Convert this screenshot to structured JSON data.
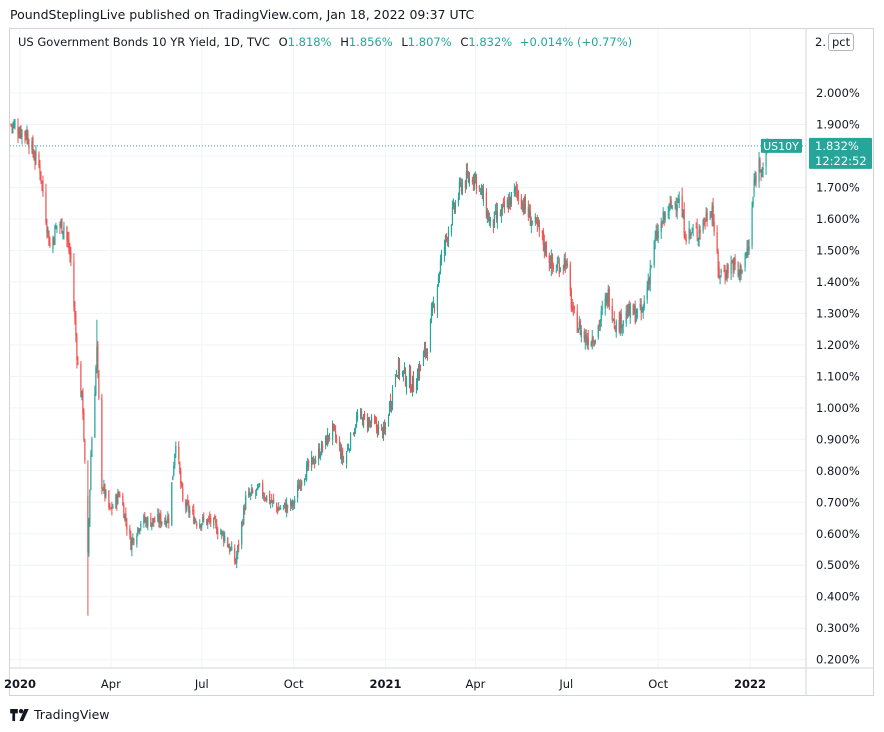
{
  "header": {
    "published": "PoundStерlingLive published on TradingView.com, Jan 18, 2022 09:37 UTC"
  },
  "legend": {
    "title": "US Government Bonds 10 YR Yield, 1D, TVC",
    "open_label": "O",
    "open": "1.818%",
    "high_label": "H",
    "high": "1.856%",
    "low_label": "L",
    "low": "1.807%",
    "close_label": "C",
    "close": "1.832%",
    "change": "+0.014% (+0.77%)"
  },
  "scale": {
    "partial_label": "2.",
    "unit_button": "pct"
  },
  "price_tag": {
    "symbol": "US10Y",
    "price": "1.832%",
    "countdown": "12:22:52"
  },
  "footer": {
    "brand": "TradingView"
  },
  "colors": {
    "up": "#26a69a",
    "down": "#ef5350",
    "tag": "#26a69a",
    "grid": "#f0f3fa"
  },
  "chart_data": {
    "type": "candlestick",
    "title": "US Government Bonds 10 YR Yield, 1D, TVC",
    "y_unit": "%",
    "ylim": [
      0.18,
      2.2
    ],
    "y_ticks": [
      "2.000%",
      "1.900%",
      "1.800%",
      "1.700%",
      "1.600%",
      "1.500%",
      "1.400%",
      "1.300%",
      "1.200%",
      "1.100%",
      "1.000%",
      "0.900%",
      "0.800%",
      "0.700%",
      "0.600%",
      "0.500%",
      "0.400%",
      "0.300%",
      "0.200%"
    ],
    "y_tick_values": [
      2.0,
      1.9,
      1.8,
      1.7,
      1.6,
      1.5,
      1.4,
      1.3,
      1.2,
      1.1,
      1.0,
      0.9,
      0.8,
      0.7,
      0.6,
      0.5,
      0.4,
      0.3,
      0.2
    ],
    "x_ticks": [
      {
        "label": "2020",
        "date": "2020-01-01",
        "bold": true
      },
      {
        "label": "Apr",
        "date": "2020-04-01",
        "bold": false
      },
      {
        "label": "Jul",
        "date": "2020-07-01",
        "bold": false
      },
      {
        "label": "Oct",
        "date": "2020-10-01",
        "bold": false
      },
      {
        "label": "2021",
        "date": "2021-01-01",
        "bold": true
      },
      {
        "label": "Apr",
        "date": "2021-04-01",
        "bold": false
      },
      {
        "label": "Jul",
        "date": "2021-07-01",
        "bold": false
      },
      {
        "label": "Oct",
        "date": "2021-10-01",
        "bold": false
      },
      {
        "label": "2022",
        "date": "2022-01-01",
        "bold": true
      }
    ],
    "x_range": [
      "2019-12-22",
      "2022-02-25"
    ],
    "last_close": 1.832,
    "close_path": [
      [
        "2019-12-23",
        1.9
      ],
      [
        "2020-01-02",
        1.88
      ],
      [
        "2020-01-08",
        1.87
      ],
      [
        "2020-01-14",
        1.81
      ],
      [
        "2020-01-21",
        1.76
      ],
      [
        "2020-01-31",
        1.51
      ],
      [
        "2020-02-07",
        1.58
      ],
      [
        "2020-02-14",
        1.58
      ],
      [
        "2020-02-21",
        1.47
      ],
      [
        "2020-02-28",
        1.13
      ],
      [
        "2020-03-04",
        1.0
      ],
      [
        "2020-03-09",
        0.54
      ],
      [
        "2020-03-12",
        0.85
      ],
      [
        "2020-03-18",
        1.18
      ],
      [
        "2020-03-23",
        0.76
      ],
      [
        "2020-03-31",
        0.67
      ],
      [
        "2020-04-10",
        0.73
      ],
      [
        "2020-04-21",
        0.57
      ],
      [
        "2020-05-01",
        0.64
      ],
      [
        "2020-05-15",
        0.64
      ],
      [
        "2020-05-29",
        0.65
      ],
      [
        "2020-06-05",
        0.9
      ],
      [
        "2020-06-12",
        0.7
      ],
      [
        "2020-06-26",
        0.64
      ],
      [
        "2020-07-10",
        0.64
      ],
      [
        "2020-07-24",
        0.59
      ],
      [
        "2020-08-04",
        0.51
      ],
      [
        "2020-08-14",
        0.71
      ],
      [
        "2020-08-28",
        0.74
      ],
      [
        "2020-09-15",
        0.68
      ],
      [
        "2020-09-30",
        0.69
      ],
      [
        "2020-10-09",
        0.78
      ],
      [
        "2020-10-23",
        0.84
      ],
      [
        "2020-11-09",
        0.93
      ],
      [
        "2020-11-20",
        0.83
      ],
      [
        "2020-12-04",
        0.97
      ],
      [
        "2020-12-18",
        0.95
      ],
      [
        "2020-12-31",
        0.92
      ],
      [
        "2021-01-12",
        1.13
      ],
      [
        "2021-01-29",
        1.07
      ],
      [
        "2021-02-12",
        1.2
      ],
      [
        "2021-02-25",
        1.46
      ],
      [
        "2021-03-05",
        1.57
      ],
      [
        "2021-03-18",
        1.71
      ],
      [
        "2021-03-31",
        1.74
      ],
      [
        "2021-04-09",
        1.66
      ],
      [
        "2021-04-16",
        1.58
      ],
      [
        "2021-04-30",
        1.63
      ],
      [
        "2021-05-12",
        1.69
      ],
      [
        "2021-05-28",
        1.59
      ],
      [
        "2021-06-04",
        1.56
      ],
      [
        "2021-06-18",
        1.44
      ],
      [
        "2021-06-30",
        1.47
      ],
      [
        "2021-07-08",
        1.29
      ],
      [
        "2021-07-20",
        1.22
      ],
      [
        "2021-07-30",
        1.23
      ],
      [
        "2021-08-12",
        1.36
      ],
      [
        "2021-08-20",
        1.26
      ],
      [
        "2021-08-31",
        1.3
      ],
      [
        "2021-09-15",
        1.3
      ],
      [
        "2021-09-28",
        1.53
      ],
      [
        "2021-10-08",
        1.61
      ],
      [
        "2021-10-21",
        1.67
      ],
      [
        "2021-10-29",
        1.55
      ],
      [
        "2021-11-10",
        1.56
      ],
      [
        "2021-11-24",
        1.64
      ],
      [
        "2021-11-30",
        1.43
      ],
      [
        "2021-12-06",
        1.43
      ],
      [
        "2021-12-15",
        1.46
      ],
      [
        "2021-12-20",
        1.42
      ],
      [
        "2021-12-31",
        1.51
      ],
      [
        "2022-01-05",
        1.71
      ],
      [
        "2022-01-10",
        1.78
      ],
      [
        "2022-01-14",
        1.77
      ],
      [
        "2022-01-18",
        1.832
      ]
    ]
  }
}
